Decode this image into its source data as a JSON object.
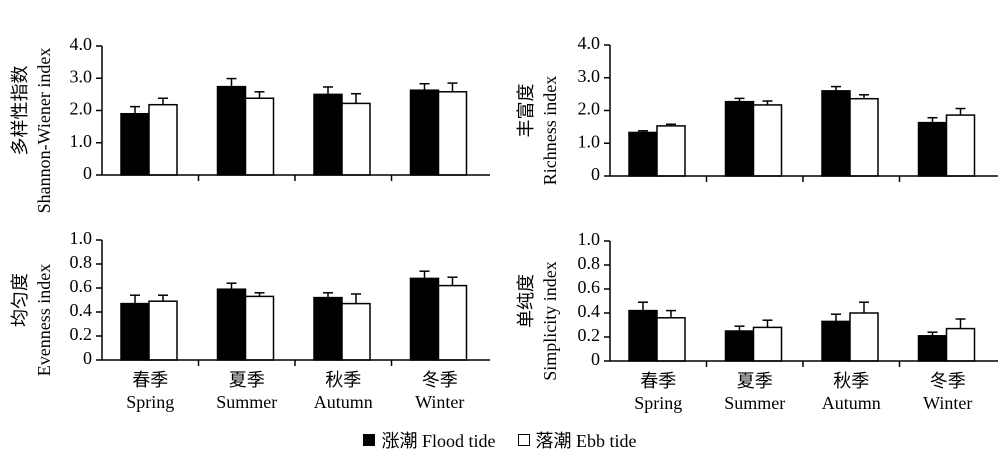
{
  "chart_data": [
    {
      "type": "bar",
      "ylabel_cn": "多样性指数",
      "ylabel_en": "Shannon-Wiener index",
      "ylim": [
        0,
        4.0
      ],
      "yticks": [
        "4.0",
        "3.0",
        "2.0",
        "1.0",
        "0"
      ],
      "categories": [
        "Spring",
        "Summer",
        "Autumn",
        "Winter"
      ],
      "series": [
        {
          "name": "Flood tide",
          "values": [
            1.9,
            2.74,
            2.5,
            2.63
          ],
          "errors": [
            0.22,
            0.25,
            0.23,
            0.2
          ]
        },
        {
          "name": "Ebb tide",
          "values": [
            2.18,
            2.38,
            2.22,
            2.58
          ],
          "errors": [
            0.2,
            0.2,
            0.3,
            0.27
          ]
        }
      ]
    },
    {
      "type": "bar",
      "ylabel_cn": "丰富度",
      "ylabel_en": "Richness index",
      "ylim": [
        0,
        4.0
      ],
      "yticks": [
        "4.0",
        "3.0",
        "2.0",
        "1.0",
        "0"
      ],
      "categories": [
        "Spring",
        "Summer",
        "Autumn",
        "Winter"
      ],
      "series": [
        {
          "name": "Flood tide",
          "values": [
            1.33,
            2.27,
            2.6,
            1.63
          ],
          "errors": [
            0.05,
            0.1,
            0.13,
            0.15
          ]
        },
        {
          "name": "Ebb tide",
          "values": [
            1.53,
            2.17,
            2.36,
            1.86
          ],
          "errors": [
            0.05,
            0.12,
            0.12,
            0.2
          ]
        }
      ]
    },
    {
      "type": "bar",
      "ylabel_cn": "均匀度",
      "ylabel_en": "Evenness index",
      "ylim": [
        0,
        1.0
      ],
      "yticks": [
        "1.0",
        "0.8",
        "0.6",
        "0.4",
        "0.2",
        "0"
      ],
      "categories": [
        "Spring",
        "Summer",
        "Autumn",
        "Winter"
      ],
      "series": [
        {
          "name": "Flood tide",
          "values": [
            0.47,
            0.59,
            0.52,
            0.68
          ],
          "errors": [
            0.07,
            0.05,
            0.04,
            0.06
          ]
        },
        {
          "name": "Ebb tide",
          "values": [
            0.49,
            0.53,
            0.47,
            0.62
          ],
          "errors": [
            0.05,
            0.03,
            0.08,
            0.07
          ]
        }
      ]
    },
    {
      "type": "bar",
      "ylabel_cn": "单纯度",
      "ylabel_en": "Simplicity index",
      "ylim": [
        0,
        1.0
      ],
      "yticks": [
        "1.0",
        "0.8",
        "0.6",
        "0.4",
        "0.2",
        "0"
      ],
      "categories": [
        "Spring",
        "Summer",
        "Autumn",
        "Winter"
      ],
      "series": [
        {
          "name": "Flood tide",
          "values": [
            0.42,
            0.25,
            0.33,
            0.21
          ],
          "errors": [
            0.07,
            0.04,
            0.06,
            0.03
          ]
        },
        {
          "name": "Ebb tide",
          "values": [
            0.36,
            0.28,
            0.4,
            0.27
          ],
          "errors": [
            0.06,
            0.06,
            0.09,
            0.08
          ]
        }
      ]
    }
  ],
  "x_tick_labels": [
    {
      "cn": "春季",
      "en": "Spring"
    },
    {
      "cn": "夏季",
      "en": "Summer"
    },
    {
      "cn": "秋季",
      "en": "Autumn"
    },
    {
      "cn": "冬季",
      "en": "Winter"
    }
  ],
  "legend": [
    {
      "label": "涨潮 Flood tide",
      "color": "#000000"
    },
    {
      "label": "落潮 Ebb tide",
      "color": "#ffffff"
    }
  ],
  "colors": {
    "flood": "#000000",
    "ebb": "#ffffff",
    "axis": "#000000"
  }
}
